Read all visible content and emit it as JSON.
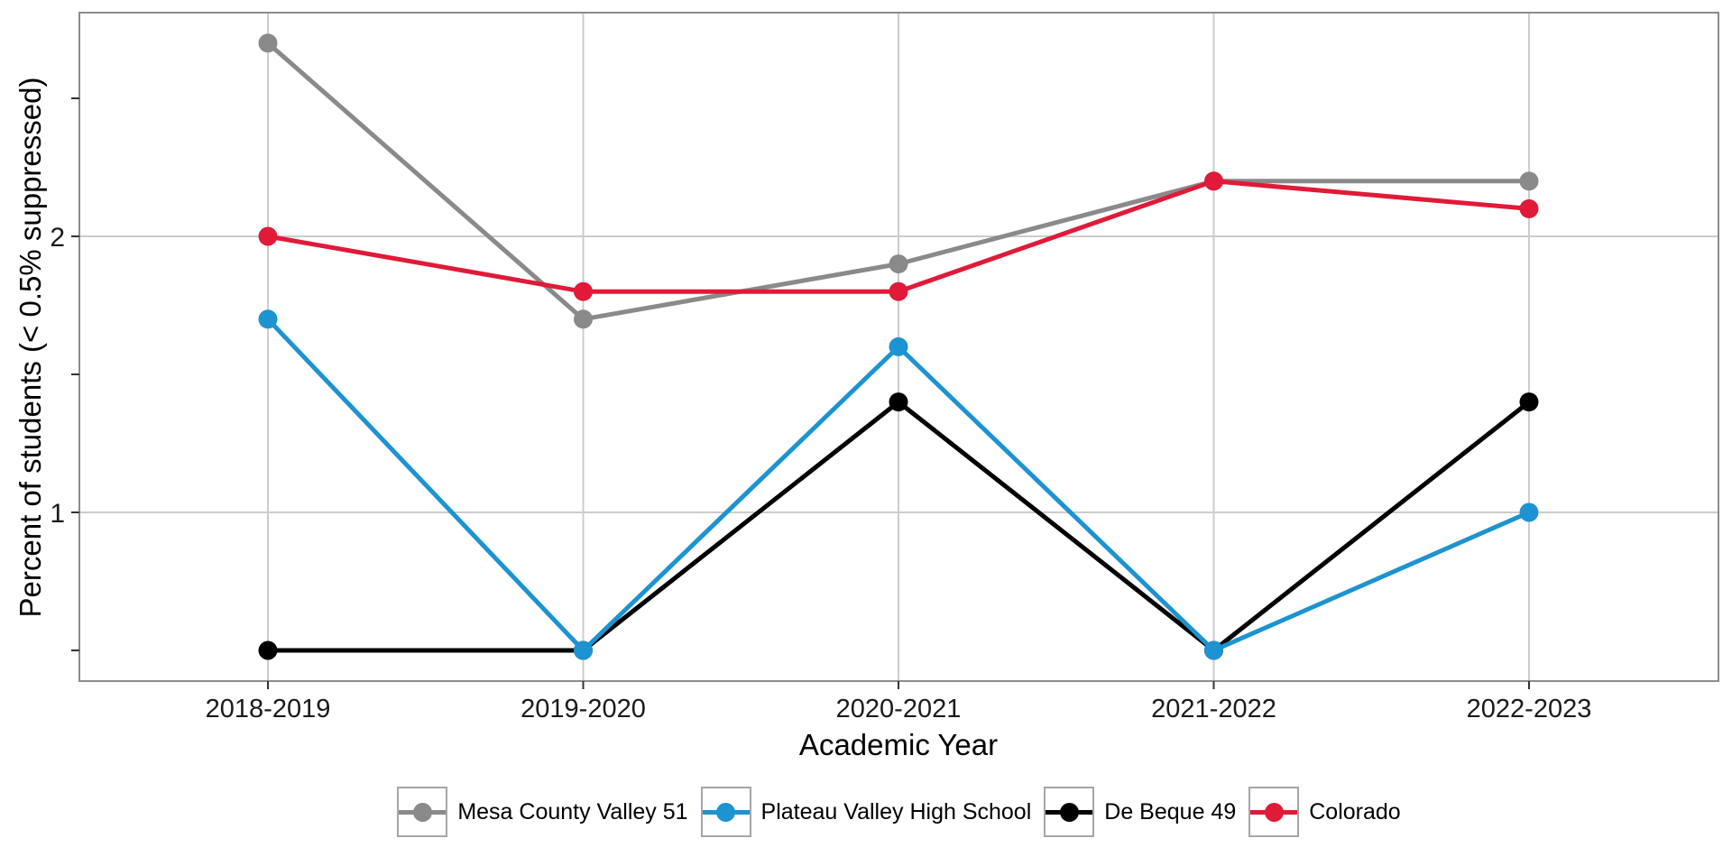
{
  "chart_data": {
    "type": "line",
    "title": "",
    "xlabel": "Academic Year",
    "ylabel": "Percent of students (< 0.5% suppressed)",
    "categories": [
      "2018-2019",
      "2019-2020",
      "2020-2021",
      "2021-2022",
      "2022-2023"
    ],
    "series": [
      {
        "name": "Mesa County Valley 51",
        "color": "#8a8a8a",
        "values": [
          2.7,
          1.7,
          1.9,
          2.2,
          2.2
        ]
      },
      {
        "name": "Plateau Valley High School",
        "color": "#1d93d1",
        "values": [
          1.7,
          0.5,
          1.6,
          0.5,
          1.0
        ]
      },
      {
        "name": "De Beque 49",
        "color": "#000000",
        "values": [
          0.5,
          0.5,
          1.4,
          0.5,
          1.4
        ]
      },
      {
        "name": "Colorado",
        "color": "#e01a38",
        "values": [
          2.0,
          1.8,
          1.8,
          2.2,
          2.1
        ]
      }
    ],
    "draw_order": [
      0,
      2,
      1,
      3
    ],
    "y_axis": {
      "labeled_ticks": [
        {
          "value": 2,
          "label": "2"
        },
        {
          "value": 1,
          "label": "1"
        }
      ],
      "minor_ticks": [
        2.5,
        1.5,
        0.5
      ],
      "gridline_values": [
        2,
        1
      ]
    },
    "ylim": [
      0.39,
      2.81
    ],
    "grid": {
      "vertical": true,
      "horizontal": true
    },
    "legend_position": "bottom",
    "colors": {
      "gridline": "#cccccc",
      "panel_border": "#8c8c8c",
      "tick_mark": "#333333",
      "tick_label": "#1a1a1a"
    }
  }
}
